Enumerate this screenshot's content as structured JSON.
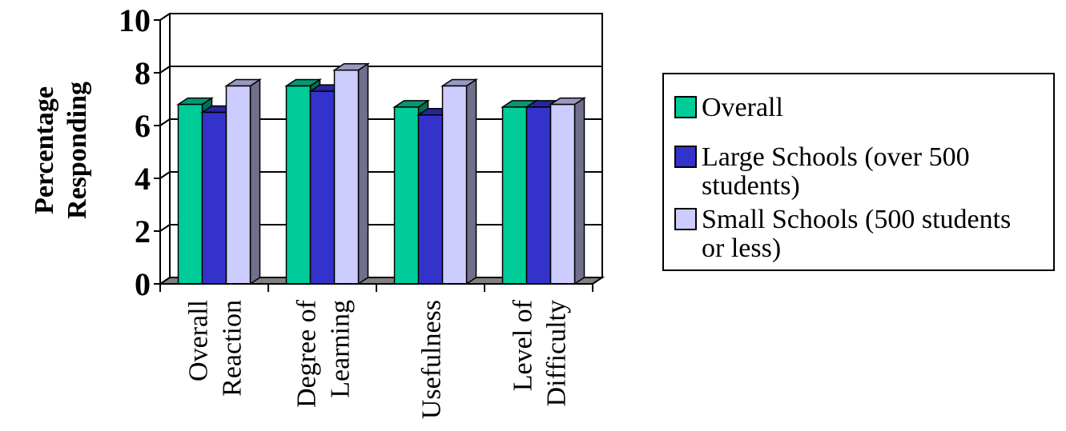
{
  "chart_data": {
    "type": "bar",
    "ylabel_lines": [
      "Percentage",
      "Responding"
    ],
    "xlabel": "",
    "ylim": [
      0,
      10
    ],
    "yticks": [
      0,
      2,
      4,
      6,
      8,
      10
    ],
    "categories": [
      [
        "Overall",
        "Reaction"
      ],
      [
        "Degree of",
        "Learning"
      ],
      [
        "Usefulness"
      ],
      [
        "Level of",
        "Difficulty"
      ]
    ],
    "series": [
      {
        "name": "Overall",
        "values": [
          6.8,
          7.5,
          6.7,
          6.7
        ],
        "color": "#00CC99"
      },
      {
        "name": "Large Schools (over 500 students)",
        "values": [
          6.5,
          7.3,
          6.4,
          6.7
        ],
        "color": "#3333CC"
      },
      {
        "name": "Small Schools (500 students or less)",
        "values": [
          7.5,
          8.1,
          7.5,
          6.8
        ],
        "color": "#CCCCFF"
      }
    ],
    "legend_lines": [
      [
        "Overall"
      ],
      [
        "Large Schools (over 500",
        "students)"
      ],
      [
        "Small Schools (500 students",
        "or less)"
      ]
    ],
    "grid": true,
    "legend_position": "right"
  }
}
